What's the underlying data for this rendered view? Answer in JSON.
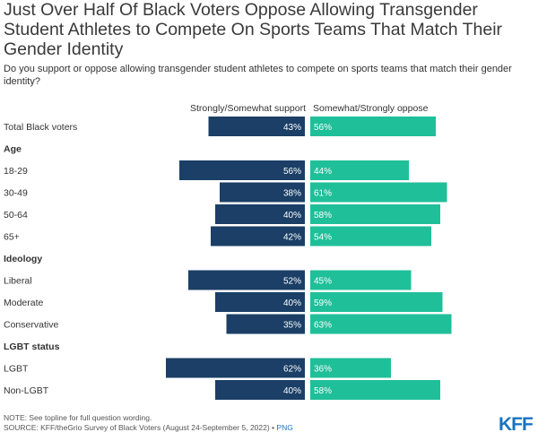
{
  "title": "Just Over Half Of Black Voters Oppose Allowing Transgender Student Athletes to Compete On Sports Teams That Match Their Gender Identity",
  "subtitle": "Do you support or oppose allowing transgender student athletes to compete on sports teams that match their gender identity?",
  "note": "NOTE: See topline for full question wording.",
  "source": "SOURCE: KFF/theGrio Survey of Black Voters (August 24-September 5, 2022) •",
  "source_link": "PNG",
  "logo_text": "KFF",
  "colors": {
    "support": "#1b3f66",
    "oppose": "#1fbf99",
    "logo": "#1a73c0"
  },
  "chart_data": {
    "type": "bar",
    "orientation": "diverging-horizontal",
    "series": [
      {
        "name": "Strongly/Somewhat support",
        "color": "#1b3f66"
      },
      {
        "name": "Somewhat/Strongly oppose",
        "color": "#1fbf99"
      }
    ],
    "rows": [
      {
        "label": "Total Black voters",
        "support": 43,
        "oppose": 56
      },
      {
        "group": "Age"
      },
      {
        "label": "18-29",
        "support": 56,
        "oppose": 44
      },
      {
        "label": "30-49",
        "support": 38,
        "oppose": 61
      },
      {
        "label": "50-64",
        "support": 40,
        "oppose": 58
      },
      {
        "label": "65+",
        "support": 42,
        "oppose": 54
      },
      {
        "group": "Ideology"
      },
      {
        "label": "Liberal",
        "support": 52,
        "oppose": 45
      },
      {
        "label": "Moderate",
        "support": 40,
        "oppose": 59
      },
      {
        "label": "Conservative",
        "support": 35,
        "oppose": 63
      },
      {
        "group": "LGBT status"
      },
      {
        "label": "LGBT",
        "support": 62,
        "oppose": 36
      },
      {
        "label": "Non-LGBT",
        "support": 40,
        "oppose": 58
      }
    ],
    "value_suffix": "%"
  }
}
